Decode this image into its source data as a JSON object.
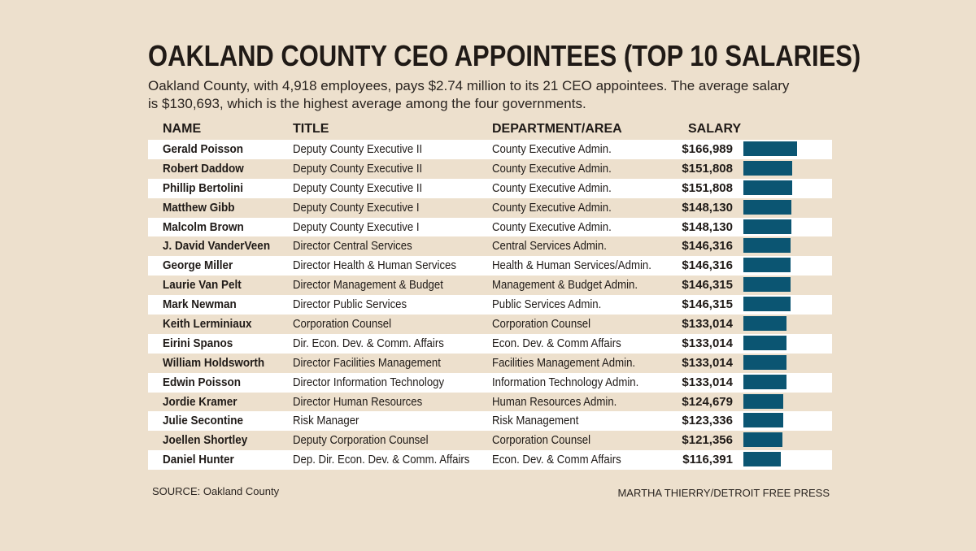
{
  "header": {
    "title": "OAKLAND COUNTY CEO APPOINTEES (TOP 10 SALARIES)",
    "subtitle": "Oakland County, with 4,918 employees, pays $2.74 million to its 21 CEO appointees. The average salary is $130,693, which is the highest average among the four governments."
  },
  "columns": {
    "name": "NAME",
    "title": "TITLE",
    "department": "DEPARTMENT/AREA",
    "salary": "SALARY"
  },
  "footer": {
    "source": "SOURCE: Oakland County",
    "credit": "MARTHA THIERRY/DETROIT FREE PRESS"
  },
  "colors": {
    "bar": "#0b5572",
    "background": "#ede0cd"
  },
  "chart_data": {
    "type": "bar",
    "title": "OAKLAND COUNTY CEO APPOINTEES (TOP 10 SALARIES)",
    "xlabel": "",
    "ylabel": "SALARY",
    "rows": [
      {
        "name": "Gerald Poisson",
        "title": "Deputy County Executive II",
        "department": "County Executive Admin.",
        "salary_label": "$166,989",
        "salary": 166989
      },
      {
        "name": "Robert Daddow",
        "title": "Deputy County Executive II",
        "department": "County Executive Admin.",
        "salary_label": "$151,808",
        "salary": 151808
      },
      {
        "name": "Phillip Bertolini",
        "title": "Deputy County Executive II",
        "department": "County Executive Admin.",
        "salary_label": "$151,808",
        "salary": 151808
      },
      {
        "name": "Matthew Gibb",
        "title": "Deputy County Executive I",
        "department": "County Executive Admin.",
        "salary_label": "$148,130",
        "salary": 148130
      },
      {
        "name": "Malcolm Brown",
        "title": "Deputy County Executive I",
        "department": "County Executive Admin.",
        "salary_label": "$148,130",
        "salary": 148130
      },
      {
        "name": "J. David VanderVeen",
        "title": "Director Central Services",
        "department": "Central Services Admin.",
        "salary_label": "$146,316",
        "salary": 146316
      },
      {
        "name": "George Miller",
        "title": "Director Health & Human Services",
        "department": "Health & Human Services/Admin.",
        "salary_label": "$146,316",
        "salary": 146316
      },
      {
        "name": "Laurie Van Pelt",
        "title": "Director Management & Budget",
        "department": "Management & Budget Admin.",
        "salary_label": "$146,315",
        "salary": 146315
      },
      {
        "name": "Mark Newman",
        "title": "Director Public Services",
        "department": "Public Services Admin.",
        "salary_label": "$146,315",
        "salary": 146315
      },
      {
        "name": "Keith Lerminiaux",
        "title": "Corporation Counsel",
        "department": "Corporation Counsel",
        "salary_label": "$133,014",
        "salary": 133014
      },
      {
        "name": "Eirini Spanos",
        "title": "Dir. Econ. Dev. & Comm. Affairs",
        "department": "Econ. Dev. & Comm Affairs",
        "salary_label": "$133,014",
        "salary": 133014
      },
      {
        "name": "William Holdsworth",
        "title": "Director Facilities Management",
        "department": "Facilities Management Admin.",
        "salary_label": "$133,014",
        "salary": 133014
      },
      {
        "name": "Edwin Poisson",
        "title": "Director Information Technology",
        "department": "Information Technology Admin.",
        "salary_label": "$133,014",
        "salary": 133014
      },
      {
        "name": "Jordie Kramer",
        "title": "Director Human Resources",
        "department": "Human Resources Admin.",
        "salary_label": "$124,679",
        "salary": 124679
      },
      {
        "name": "Julie Secontine",
        "title": "Risk Manager",
        "department": "Risk Management",
        "salary_label": "$123,336",
        "salary": 123336
      },
      {
        "name": "Joellen Shortley",
        "title": "Deputy Corporation Counsel",
        "department": "Corporation Counsel",
        "salary_label": "$121,356",
        "salary": 121356
      },
      {
        "name": "Daniel Hunter",
        "title": "Dep. Dir. Econ. Dev. & Comm. Affairs",
        "department": "Econ. Dev. & Comm Affairs",
        "salary_label": "$116,391",
        "salary": 116391
      }
    ]
  }
}
